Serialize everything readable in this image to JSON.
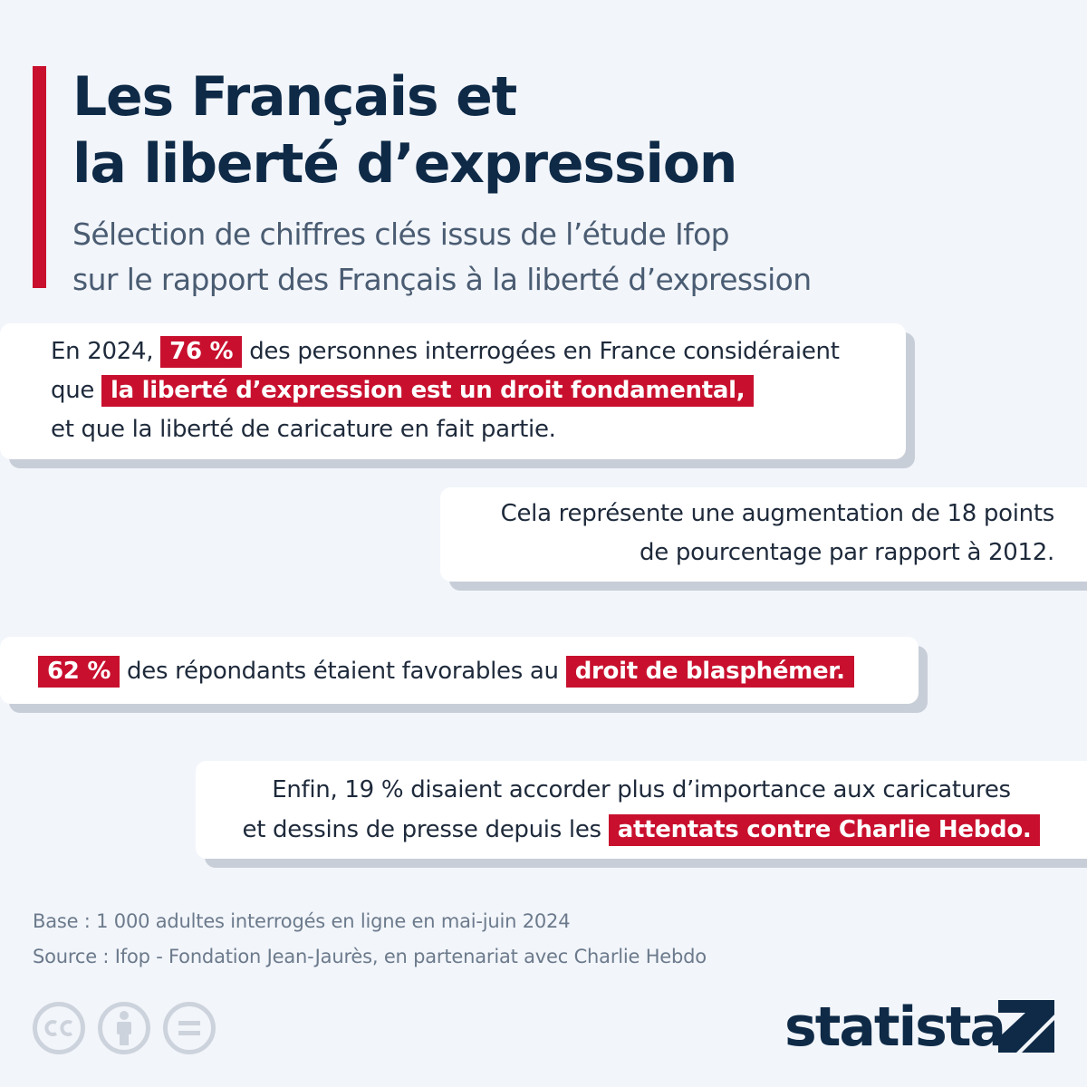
{
  "title": {
    "line1": "Les Français et",
    "line2": "la liberté d’expression"
  },
  "subtitle": {
    "line1": "Sélection de chiffres clés issus de l’étude Ifop",
    "line2": "sur le rapport des Français à la liberté d’expression"
  },
  "cards": {
    "card1": {
      "pre": "En 2024, ",
      "highlight1": "76 %",
      "text1": " des personnes interrogées en France considéraient",
      "pre2": "que ",
      "highlight2": "la liberté d’expression est un droit fondamental,",
      "text2": "et que la liberté de caricature en fait partie."
    },
    "card2": {
      "line1": "Cela représente une augmentation de 18 points",
      "line2": "de pourcentage par rapport à 2012."
    },
    "card3": {
      "highlight1": "62 %",
      "text1": " des répondants étaient favorables au ",
      "highlight2": "droit de blasphémer."
    },
    "card4": {
      "line1": "Enfin, 19 % disaient accorder plus d’importance aux caricatures",
      "text2": "et dessins de presse depuis les ",
      "highlight": "attentats contre Charlie Hebdo."
    }
  },
  "notes": {
    "base": "Base : 1 000 adultes interrogés en ligne en mai-juin 2024",
    "source": "Source : Ifop - Fondation Jean-Jaurès, en partenariat avec Charlie Hebdo"
  },
  "license_icons": [
    "cc-icon",
    "attribution-icon",
    "no-derivatives-icon"
  ],
  "brand": {
    "name": "statista",
    "accent": "#c8102e",
    "navy": "#0e2a47"
  }
}
